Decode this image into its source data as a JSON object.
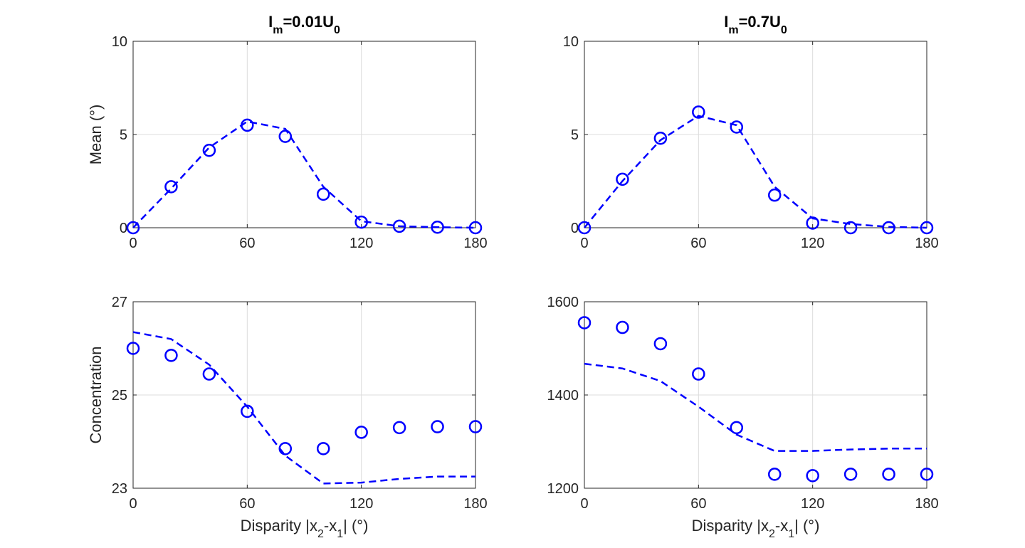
{
  "colors": {
    "series": "#0000ff",
    "axis": "#262626",
    "grid": "#dcdcdc"
  },
  "chart_data": [
    {
      "type": "scatter",
      "panel": "top-left",
      "title": {
        "main": "I",
        "sub": "m",
        "rest": "=0.01U",
        "sub2": "0"
      },
      "ylabel": "Mean (°)",
      "xlabel": null,
      "xlim": [
        0,
        180
      ],
      "ylim": [
        0,
        10
      ],
      "xticks": [
        0,
        60,
        120,
        180
      ],
      "yticks": [
        0,
        5,
        10
      ],
      "grid": true,
      "x": [
        0,
        20,
        40,
        60,
        80,
        100,
        120,
        140,
        160,
        180
      ],
      "series": [
        {
          "style": "markers",
          "marker": "circle",
          "values": [
            0,
            2.2,
            4.15,
            5.5,
            4.9,
            1.8,
            0.3,
            0.08,
            0.03,
            0.0
          ]
        },
        {
          "style": "dashed",
          "values": [
            0,
            2.1,
            4.3,
            5.7,
            5.3,
            2.2,
            0.35,
            0.08,
            0.03,
            0.0
          ]
        }
      ]
    },
    {
      "type": "scatter",
      "panel": "top-right",
      "title": {
        "main": "I",
        "sub": "m",
        "rest": "=0.7U",
        "sub2": "0"
      },
      "ylabel": null,
      "xlabel": null,
      "xlim": [
        0,
        180
      ],
      "ylim": [
        0,
        10
      ],
      "xticks": [
        0,
        60,
        120,
        180
      ],
      "yticks": [
        0,
        5,
        10
      ],
      "grid": true,
      "x": [
        0,
        20,
        40,
        60,
        80,
        100,
        120,
        140,
        160,
        180
      ],
      "series": [
        {
          "style": "markers",
          "marker": "circle",
          "values": [
            0,
            2.6,
            4.8,
            6.2,
            5.4,
            1.75,
            0.25,
            0.0,
            0.0,
            0.0
          ]
        },
        {
          "style": "dashed",
          "values": [
            0,
            2.5,
            4.7,
            6.0,
            5.5,
            2.2,
            0.5,
            0.2,
            0.05,
            0.0
          ]
        }
      ]
    },
    {
      "type": "scatter",
      "panel": "bottom-left",
      "title": null,
      "ylabel": "Concentration",
      "xlabel": {
        "pre": "Disparity |x",
        "sub": "2",
        "mid": "-x",
        "sub2": "1",
        "post": "| (°)"
      },
      "xlim": [
        0,
        180
      ],
      "ylim": [
        23,
        27
      ],
      "xticks": [
        0,
        60,
        120,
        180
      ],
      "yticks": [
        23,
        25,
        27
      ],
      "grid": true,
      "x": [
        0,
        20,
        40,
        60,
        80,
        100,
        120,
        140,
        160,
        180
      ],
      "series": [
        {
          "style": "markers",
          "marker": "circle",
          "values": [
            26.0,
            25.85,
            25.45,
            24.65,
            23.85,
            23.85,
            24.2,
            24.3,
            24.32,
            24.32
          ]
        },
        {
          "style": "dashed",
          "values": [
            26.35,
            26.2,
            25.65,
            24.75,
            23.7,
            23.1,
            23.12,
            23.2,
            23.25,
            23.25
          ]
        }
      ]
    },
    {
      "type": "scatter",
      "panel": "bottom-right",
      "title": null,
      "ylabel": null,
      "xlabel": {
        "pre": "Disparity |x",
        "sub": "2",
        "mid": "-x",
        "sub2": "1",
        "post": "| (°)"
      },
      "xlim": [
        0,
        180
      ],
      "ylim": [
        1200,
        1600
      ],
      "xticks": [
        0,
        60,
        120,
        180
      ],
      "yticks": [
        1200,
        1400,
        1600
      ],
      "grid": true,
      "x": [
        0,
        20,
        40,
        60,
        80,
        100,
        120,
        140,
        160,
        180
      ],
      "series": [
        {
          "style": "markers",
          "marker": "circle",
          "values": [
            1555,
            1545,
            1510,
            1445,
            1330,
            1230,
            1227,
            1230,
            1230,
            1230
          ]
        },
        {
          "style": "dashed",
          "values": [
            1467,
            1457,
            1430,
            1375,
            1315,
            1280,
            1280,
            1283,
            1285,
            1285
          ]
        }
      ]
    }
  ]
}
